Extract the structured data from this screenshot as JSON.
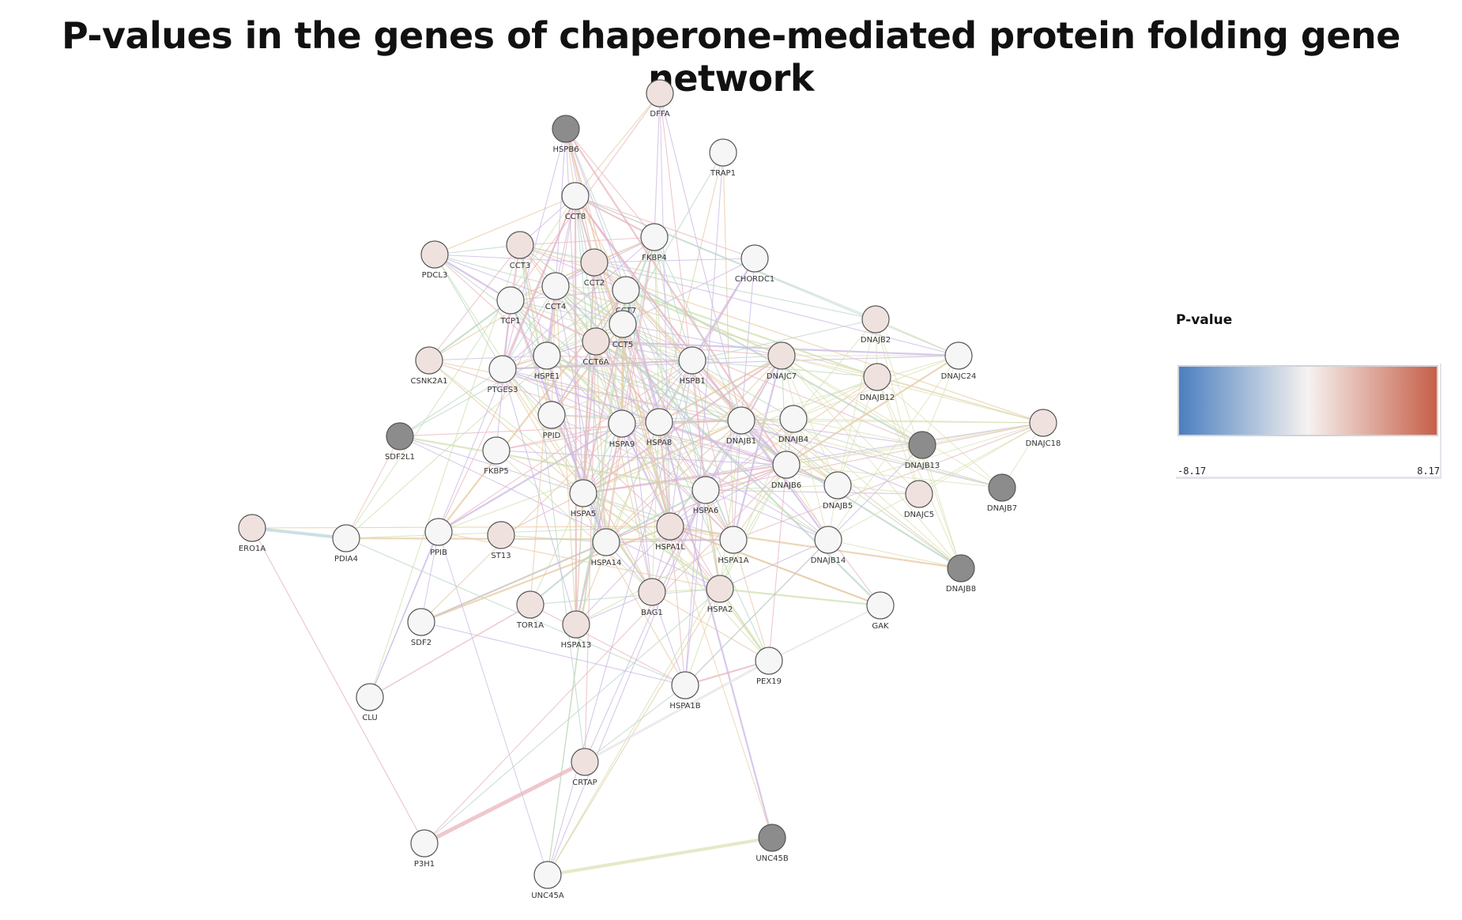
{
  "title": "P-values in the genes of chaperone-mediated protein folding gene network",
  "legend": {
    "title": "P-value",
    "min_label": "-8.17",
    "max_label": "8.17",
    "min_color": "#4a7fbf",
    "mid_color": "#f6f2f0",
    "max_color": "#c65f48"
  },
  "colors": {
    "node_light": "#f6f6f6",
    "node_pink": "#efe2de",
    "node_gray": "#8c8c8c",
    "node_stroke": "#555555",
    "edge_palette": [
      "#c9b7e3",
      "#e7c8a0",
      "#e8b6bd",
      "#cde0b0",
      "#b9d6c6"
    ]
  },
  "network": {
    "nodes": [
      {
        "id": "DFFA",
        "tone": "pink"
      },
      {
        "id": "HSPB6",
        "tone": "gray"
      },
      {
        "id": "TRAP1",
        "tone": "light"
      },
      {
        "id": "CCT8",
        "tone": "light"
      },
      {
        "id": "PDCL3",
        "tone": "pink"
      },
      {
        "id": "CCT3",
        "tone": "pink"
      },
      {
        "id": "FKBP4",
        "tone": "light"
      },
      {
        "id": "CHORDC1",
        "tone": "light"
      },
      {
        "id": "CCT2",
        "tone": "pink"
      },
      {
        "id": "CCT4",
        "tone": "light"
      },
      {
        "id": "CCT7",
        "tone": "light"
      },
      {
        "id": "TCP1",
        "tone": "light"
      },
      {
        "id": "CCT5",
        "tone": "light"
      },
      {
        "id": "CCT6A",
        "tone": "pink"
      },
      {
        "id": "CSNK2A1",
        "tone": "pink"
      },
      {
        "id": "PTGES3",
        "tone": "light"
      },
      {
        "id": "HSPE1",
        "tone": "light"
      },
      {
        "id": "HSPB1",
        "tone": "light"
      },
      {
        "id": "DNAJC7",
        "tone": "pink"
      },
      {
        "id": "DNAJB2",
        "tone": "pink"
      },
      {
        "id": "DNAJC24",
        "tone": "light"
      },
      {
        "id": "DNAJB12",
        "tone": "pink"
      },
      {
        "id": "PPID",
        "tone": "light"
      },
      {
        "id": "HSPA9",
        "tone": "light"
      },
      {
        "id": "HSPA8",
        "tone": "light"
      },
      {
        "id": "DNAJB1",
        "tone": "light"
      },
      {
        "id": "DNAJB4",
        "tone": "light"
      },
      {
        "id": "DNAJC18",
        "tone": "pink"
      },
      {
        "id": "SDF2L1",
        "tone": "gray"
      },
      {
        "id": "DNAJB13",
        "tone": "gray"
      },
      {
        "id": "FKBP5",
        "tone": "light"
      },
      {
        "id": "DNAJB6",
        "tone": "light"
      },
      {
        "id": "DNAJB5",
        "tone": "light"
      },
      {
        "id": "DNAJC5",
        "tone": "pink"
      },
      {
        "id": "DNAJB7",
        "tone": "gray"
      },
      {
        "id": "HSPA5",
        "tone": "light"
      },
      {
        "id": "HSPA6",
        "tone": "light"
      },
      {
        "id": "ERO1A",
        "tone": "pink"
      },
      {
        "id": "PDIA4",
        "tone": "light"
      },
      {
        "id": "PPIB",
        "tone": "light"
      },
      {
        "id": "ST13",
        "tone": "pink"
      },
      {
        "id": "HSPA14",
        "tone": "light"
      },
      {
        "id": "HSPA1L",
        "tone": "pink"
      },
      {
        "id": "HSPA1A",
        "tone": "light"
      },
      {
        "id": "DNAJB14",
        "tone": "light"
      },
      {
        "id": "DNAJB8",
        "tone": "gray"
      },
      {
        "id": "BAG1",
        "tone": "pink"
      },
      {
        "id": "HSPA2",
        "tone": "pink"
      },
      {
        "id": "TOR1A",
        "tone": "pink"
      },
      {
        "id": "SDF2",
        "tone": "light"
      },
      {
        "id": "HSPA13",
        "tone": "pink"
      },
      {
        "id": "GAK",
        "tone": "light"
      },
      {
        "id": "PEX19",
        "tone": "light"
      },
      {
        "id": "HSPA1B",
        "tone": "light"
      },
      {
        "id": "CLU",
        "tone": "light"
      },
      {
        "id": "CRTAP",
        "tone": "pink"
      },
      {
        "id": "P3H1",
        "tone": "light"
      },
      {
        "id": "UNC45B",
        "tone": "gray"
      },
      {
        "id": "UNC45A",
        "tone": "light"
      }
    ]
  }
}
